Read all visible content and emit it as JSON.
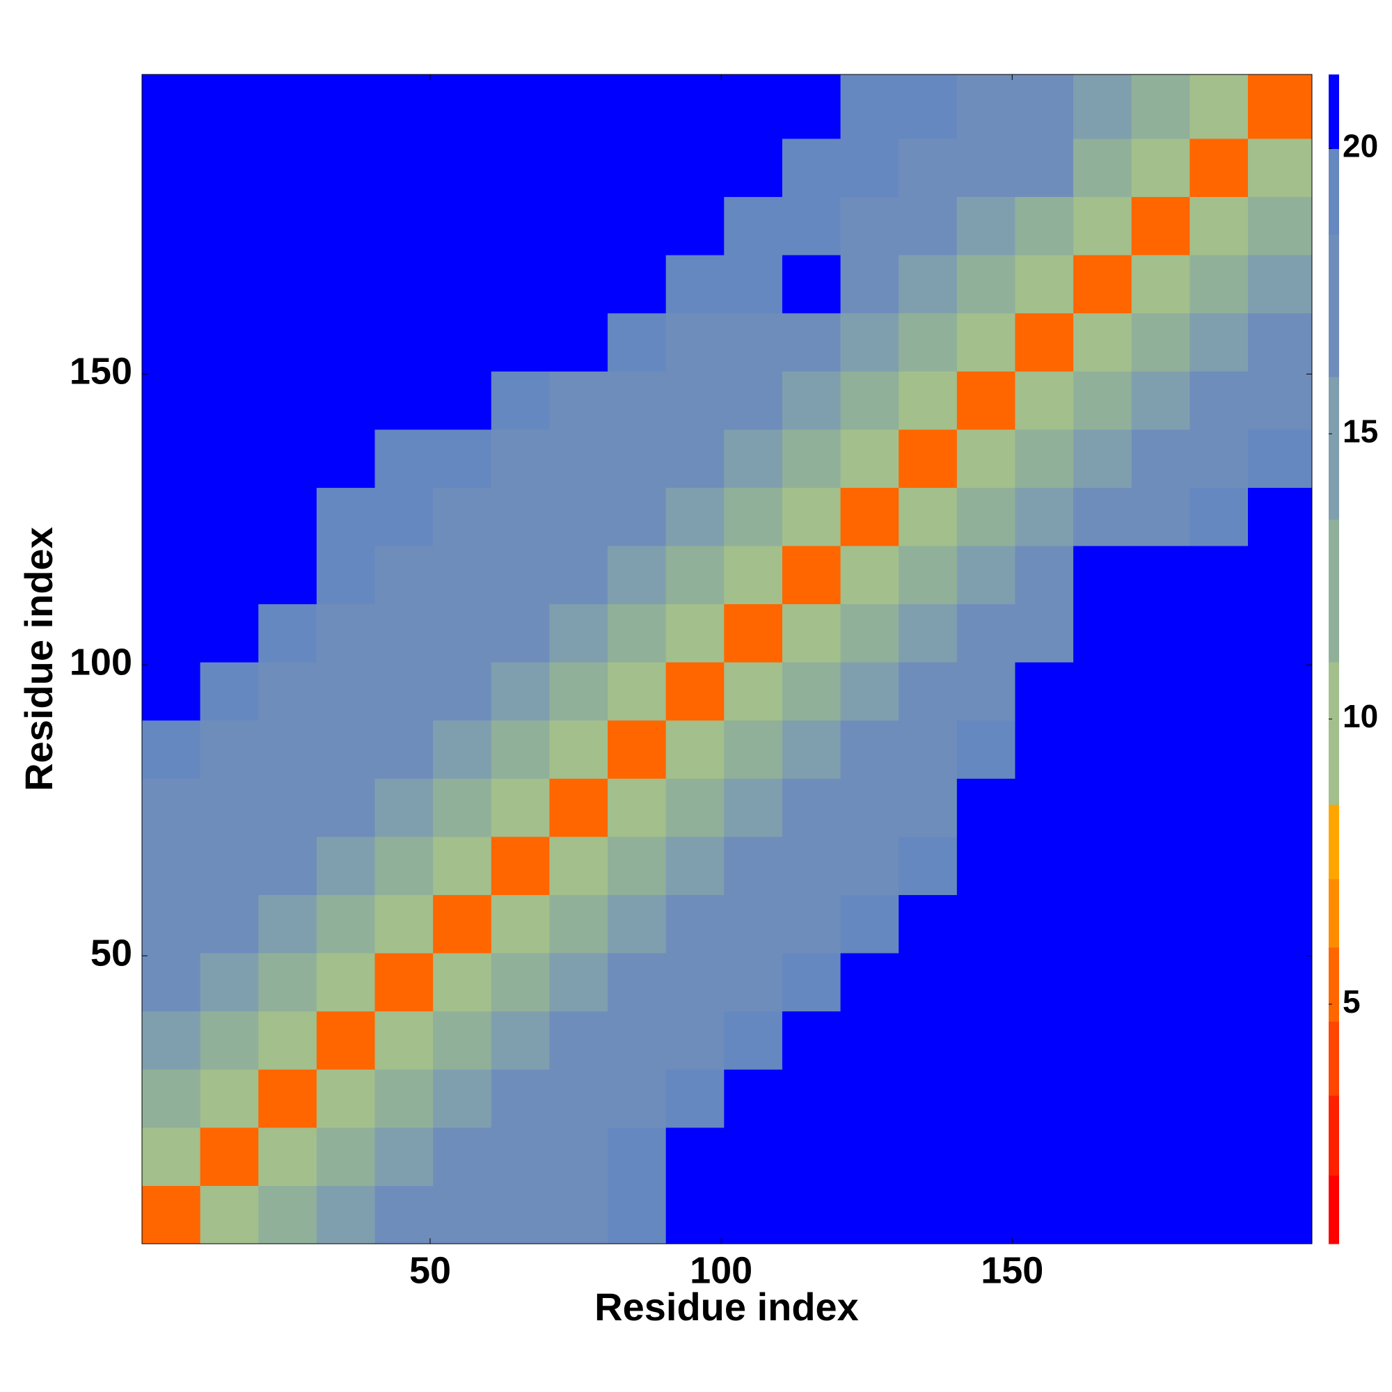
{
  "chart_data": {
    "type": "heatmap",
    "xlabel": "Residue index",
    "ylabel": "Residue index",
    "x_bins": [
      0.5,
      10.5,
      20.5,
      30.5,
      40.5,
      50.5,
      60.5,
      70.5,
      80.5,
      90.5,
      100.5,
      110.5,
      120.5,
      130.5,
      140.5,
      150.5,
      160.5,
      170.5,
      180.5,
      190.5,
      201.5
    ],
    "y_bins": [
      0.5,
      10.5,
      20.5,
      30.5,
      40.5,
      50.5,
      60.5,
      70.5,
      80.5,
      90.5,
      100.5,
      110.5,
      120.5,
      130.5,
      140.5,
      150.5,
      160.5,
      170.5,
      180.5,
      190.5,
      201.5
    ],
    "z": [
      [
        5,
        10,
        13,
        15,
        16,
        17,
        18,
        18,
        19,
        20,
        21,
        21,
        21,
        21,
        21,
        21,
        21,
        21,
        21,
        21
      ],
      [
        10,
        5,
        10,
        13,
        15,
        16,
        17,
        18,
        19,
        20,
        21,
        21,
        21,
        21,
        21,
        21,
        21,
        21,
        21,
        21
      ],
      [
        13,
        10,
        5,
        10,
        13,
        15,
        16,
        17,
        18,
        19,
        20,
        21,
        21,
        21,
        21,
        21,
        21,
        21,
        21,
        21
      ],
      [
        15,
        13,
        10,
        5,
        10,
        13,
        15,
        16,
        17,
        18,
        19,
        21,
        21,
        21,
        21,
        21,
        21,
        21,
        21,
        21
      ],
      [
        16,
        15,
        13,
        10,
        5,
        10,
        13,
        15,
        16,
        17,
        18,
        19,
        20,
        21,
        21,
        21,
        21,
        21,
        21,
        21
      ],
      [
        17,
        16,
        15,
        13,
        10,
        5,
        10,
        13,
        15,
        16,
        17,
        18,
        19,
        20,
        21,
        21,
        21,
        21,
        21,
        21
      ],
      [
        18,
        17,
        16,
        15,
        13,
        10,
        5,
        10,
        13,
        15,
        16,
        17,
        18,
        19,
        21,
        21,
        21,
        21,
        21,
        21
      ],
      [
        18,
        18,
        17,
        16,
        15,
        13,
        10,
        5,
        10,
        13,
        15,
        16,
        17,
        18,
        20,
        21,
        21,
        21,
        21,
        21
      ],
      [
        19,
        18,
        18,
        17,
        16,
        15,
        13,
        10,
        5,
        10,
        13,
        15,
        16,
        17,
        19,
        21,
        21,
        21,
        21,
        21
      ],
      [
        20,
        19,
        18,
        18,
        17,
        16,
        15,
        13,
        10,
        5,
        10,
        13,
        15,
        16,
        18,
        21,
        21,
        21,
        21,
        21
      ],
      [
        21,
        20,
        19,
        18,
        18,
        17,
        16,
        15,
        13,
        10,
        5,
        10,
        13,
        15,
        16,
        18,
        21,
        20,
        21,
        21
      ],
      [
        21,
        21,
        20,
        19,
        18,
        18,
        17,
        16,
        15,
        13,
        10,
        5,
        10,
        13,
        15,
        16,
        20,
        20,
        21,
        21
      ],
      [
        21,
        21,
        20,
        19,
        19,
        18,
        18,
        17,
        16,
        15,
        13,
        10,
        5,
        10,
        13,
        15,
        16,
        18,
        19,
        20
      ],
      [
        21,
        21,
        21,
        20,
        19,
        19,
        18,
        18,
        17,
        16,
        15,
        13,
        10,
        5,
        10,
        13,
        15,
        16,
        18,
        19
      ],
      [
        21,
        21,
        21,
        21,
        21,
        20,
        19,
        18,
        18,
        17,
        16,
        15,
        13,
        10,
        5,
        10,
        13,
        15,
        16,
        17
      ],
      [
        21,
        21,
        21,
        21,
        21,
        21,
        21,
        21,
        19,
        18,
        17,
        16,
        15,
        13,
        10,
        5,
        10,
        13,
        15,
        16
      ],
      [
        21,
        21,
        21,
        21,
        21,
        21,
        21,
        21,
        21,
        19,
        19,
        21,
        16,
        15,
        13,
        10,
        5,
        10,
        13,
        15
      ],
      [
        21,
        21,
        21,
        21,
        21,
        21,
        21,
        21,
        21,
        20,
        19,
        19,
        18,
        16,
        15,
        13,
        10,
        5,
        10,
        13
      ],
      [
        21,
        21,
        21,
        21,
        21,
        21,
        21,
        21,
        21,
        20,
        20,
        19,
        19,
        18,
        17,
        16,
        13,
        10,
        5,
        10
      ],
      [
        21,
        21,
        21,
        21,
        21,
        21,
        21,
        21,
        21,
        21,
        20,
        20,
        19,
        19,
        18,
        16,
        15,
        13,
        10,
        5
      ]
    ],
    "xlim": [
      0.5,
      201.5
    ],
    "ylim": [
      0.5,
      201.5
    ],
    "xticks": [
      50,
      100,
      150
    ],
    "yticks": [
      50,
      100,
      150
    ],
    "colorbar": {
      "levels": [
        0.8,
        2,
        3.4,
        4.7,
        6,
        7.2,
        8.5,
        11,
        13.5,
        16,
        18.5,
        20,
        21.3
      ],
      "colors": [
        "#ff0000",
        "#ff2000",
        "#ff4500",
        "#ff6600",
        "#ff8c00",
        "#ffa500",
        "#a3bf8c",
        "#90b09a",
        "#809fae",
        "#6f8dbb",
        "#6688c0",
        "#0000ff"
      ],
      "ticks": [
        5,
        10,
        15,
        20
      ]
    }
  }
}
